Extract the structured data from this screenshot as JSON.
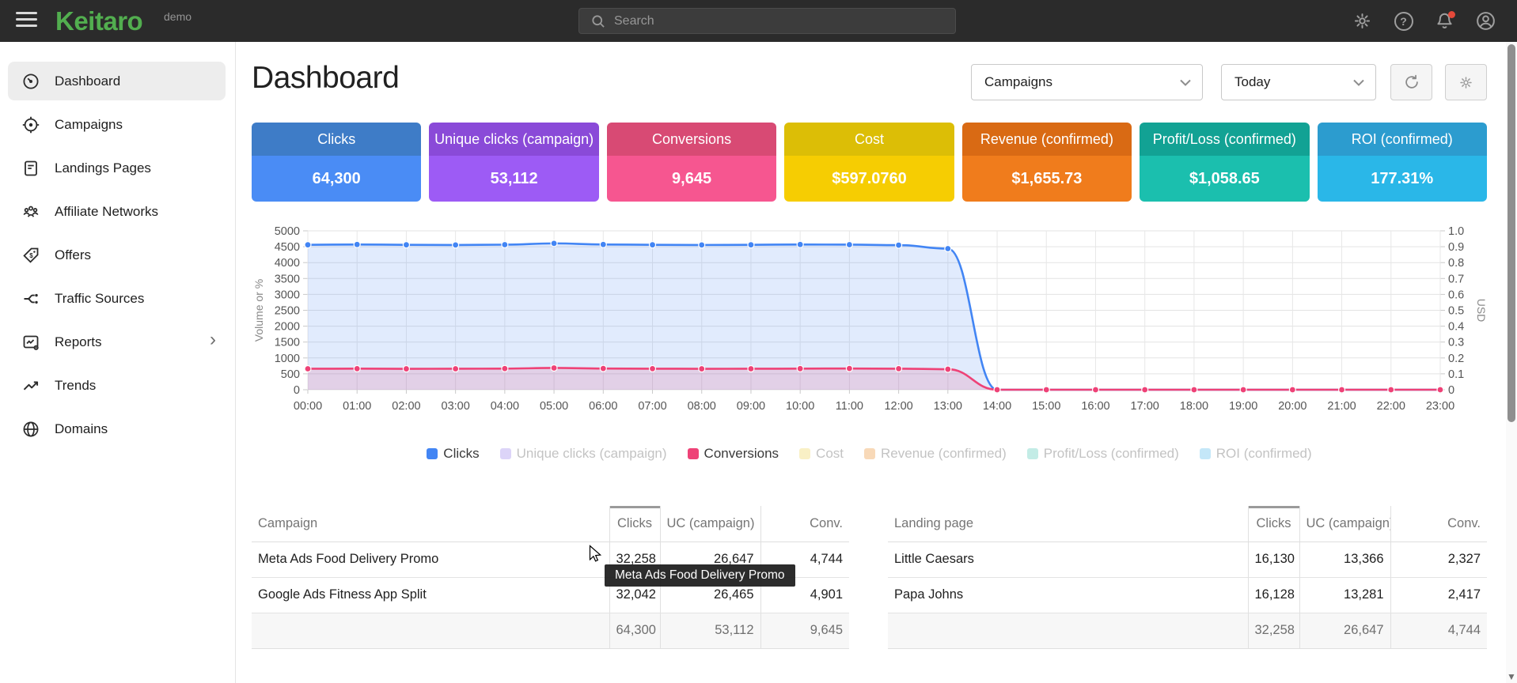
{
  "navbar": {
    "logo": "Keitaro",
    "logo_color": "#52ae4f",
    "badge": "demo",
    "search_placeholder": "Search",
    "notification_dot_color": "#e5493a"
  },
  "sidebar": {
    "items": [
      {
        "label": "Dashboard",
        "active": true
      },
      {
        "label": "Campaigns",
        "active": false
      },
      {
        "label": "Landings Pages",
        "active": false
      },
      {
        "label": "Affiliate Networks",
        "active": false
      },
      {
        "label": "Offers",
        "active": false
      },
      {
        "label": "Traffic Sources",
        "active": false
      },
      {
        "label": "Reports",
        "active": false,
        "has_chevron": true
      },
      {
        "label": "Trends",
        "active": false
      },
      {
        "label": "Domains",
        "active": false
      }
    ]
  },
  "header": {
    "title": "Dashboard",
    "campaign_filter": "Campaigns",
    "date_filter": "Today"
  },
  "stat_cards": [
    {
      "label": "Clicks",
      "value": "64,300",
      "header_color": "#3e7cc7",
      "body_color": "#4a8cf5"
    },
    {
      "label": "Unique clicks (campaign)",
      "value": "53,112",
      "header_color": "#8a4ad8",
      "body_color": "#9d5bf5"
    },
    {
      "label": "Conversions",
      "value": "9,645",
      "header_color": "#d84a74",
      "body_color": "#f65690"
    },
    {
      "label": "Cost",
      "value": "$597.0760",
      "header_color": "#dcbe06",
      "body_color": "#f6cd02"
    },
    {
      "label": "Revenue (confirmed)",
      "value": "$1,655.73",
      "header_color": "#d96a14",
      "body_color": "#f07c1c"
    },
    {
      "label": "Profit/Loss (confirmed)",
      "value": "$1,058.65",
      "header_color": "#12a294",
      "body_color": "#1bbfae"
    },
    {
      "label": "ROI (confirmed)",
      "value": "177.31%",
      "header_color": "#2c9ccf",
      "body_color": "#2ab7e8"
    }
  ],
  "chart_data": {
    "type": "line",
    "x": [
      "00:00",
      "01:00",
      "02:00",
      "03:00",
      "04:00",
      "05:00",
      "06:00",
      "07:00",
      "08:00",
      "09:00",
      "10:00",
      "11:00",
      "12:00",
      "13:00",
      "14:00",
      "15:00",
      "16:00",
      "17:00",
      "18:00",
      "19:00",
      "20:00",
      "21:00",
      "22:00",
      "23:00"
    ],
    "ylabel_left": "Volume or %",
    "ylabel_right": "USD",
    "ylim_left": [
      0,
      5000
    ],
    "ylim_right": [
      0,
      1.0
    ],
    "yticks_left": [
      "5000",
      "4500",
      "4000",
      "3500",
      "3000",
      "2500",
      "2000",
      "1500",
      "1000",
      "500",
      "0"
    ],
    "yticks_right": [
      "1.0",
      "0.9",
      "0.8",
      "0.7",
      "0.6",
      "0.5",
      "0.4",
      "0.3",
      "0.2",
      "0.1",
      "0"
    ],
    "grid": true,
    "series": [
      {
        "name": "Clicks",
        "color": "#4285f4",
        "fill": "rgba(66,133,244,0.16)",
        "values": [
          4560,
          4570,
          4560,
          4555,
          4565,
          4605,
          4570,
          4560,
          4555,
          4560,
          4570,
          4565,
          4550,
          4440,
          0,
          0,
          0,
          0,
          0,
          0,
          0,
          0,
          0,
          0
        ]
      },
      {
        "name": "Conversions",
        "color": "#ee4277",
        "fill": "rgba(238,66,119,0.16)",
        "values": [
          660,
          663,
          658,
          660,
          665,
          685,
          668,
          662,
          658,
          660,
          664,
          668,
          662,
          645,
          0,
          0,
          0,
          0,
          0,
          0,
          0,
          0,
          0,
          0
        ]
      }
    ],
    "legend": [
      {
        "label": "Clicks",
        "swatch": "#4285f4",
        "active": true
      },
      {
        "label": "Unique clicks (campaign)",
        "swatch": "#dcd4f8",
        "active": false
      },
      {
        "label": "Conversions",
        "swatch": "#ee4277",
        "active": true
      },
      {
        "label": "Cost",
        "swatch": "#f9f0c5",
        "active": false
      },
      {
        "label": "Revenue (confirmed)",
        "swatch": "#f8d9b8",
        "active": false
      },
      {
        "label": "Profit/Loss (confirmed)",
        "swatch": "#c3ece6",
        "active": false
      },
      {
        "label": "ROI (confirmed)",
        "swatch": "#c4e7f8",
        "active": false
      }
    ]
  },
  "tables": [
    {
      "columns": [
        "Campaign",
        "Clicks",
        "UC (campaign)",
        "Conv."
      ],
      "sorted_column": "Clicks",
      "rows": [
        [
          "Meta Ads Food Delivery Promo",
          "32,258",
          "26,647",
          "4,744"
        ],
        [
          "Google Ads Fitness App Split",
          "32,042",
          "26,465",
          "4,901"
        ]
      ],
      "footer": [
        "",
        "64,300",
        "53,112",
        "9,645"
      ]
    },
    {
      "columns": [
        "Landing page",
        "Clicks",
        "UC (campaign)",
        "Conv."
      ],
      "sorted_column": "Clicks",
      "rows": [
        [
          "Little Caesars",
          "16,130",
          "13,366",
          "2,327"
        ],
        [
          "Papa Johns",
          "16,128",
          "13,281",
          "2,417"
        ]
      ],
      "footer": [
        "",
        "32,258",
        "26,647",
        "4,744"
      ]
    }
  ],
  "tooltip": {
    "text": "Meta Ads Food Delivery Promo"
  }
}
